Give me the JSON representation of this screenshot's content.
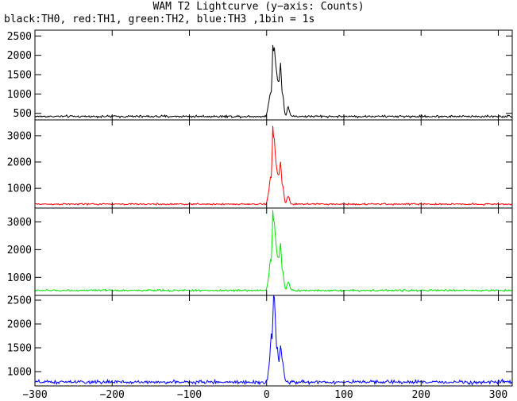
{
  "title": "WAM T2 Lightcurve (y−axis: Counts)",
  "subtitle": "black:TH0, red:TH1, green:TH2, blue:TH3 ,1bin = 1s",
  "chart_data": [
    {
      "type": "line",
      "series": [
        {
          "name": "TH0",
          "color": "#000000",
          "baseline": 420,
          "noise": 28,
          "peaks": [
            [
              2,
              220,
              1.2
            ],
            [
              5,
              580,
              1.5
            ],
            [
              8,
              1650,
              0.9
            ],
            [
              10,
              1350,
              0.9
            ],
            [
              12,
              1100,
              1.2
            ],
            [
              15,
              850,
              1.5
            ],
            [
              18,
              1200,
              1.1
            ],
            [
              21,
              520,
              1.4
            ],
            [
              28,
              250,
              1.6
            ]
          ]
        }
      ],
      "x": {
        "min": -300,
        "max": 318,
        "step": 1
      },
      "ylim": [
        330,
        2650
      ],
      "yticks": [
        500,
        1000,
        1500,
        2000,
        2500
      ],
      "grid": false
    },
    {
      "type": "line",
      "series": [
        {
          "name": "TH1",
          "color": "#ff0000",
          "baseline": 400,
          "noise": 30,
          "peaks": [
            [
              2,
              260,
              1.2
            ],
            [
              5,
              1000,
              1.4
            ],
            [
              8,
              2700,
              0.9
            ],
            [
              10,
              1900,
              0.9
            ],
            [
              12,
              1300,
              1.2
            ],
            [
              15,
              1050,
              1.5
            ],
            [
              18,
              1400,
              1.1
            ],
            [
              21,
              650,
              1.4
            ],
            [
              28,
              300,
              1.6
            ]
          ]
        }
      ],
      "x": {
        "min": -300,
        "max": 318,
        "step": 1
      },
      "ylim": [
        250,
        3600
      ],
      "yticks": [
        1000,
        2000,
        3000
      ],
      "grid": false
    },
    {
      "type": "line",
      "series": [
        {
          "name": "TH2",
          "color": "#00e000",
          "baseline": 530,
          "noise": 32,
          "peaks": [
            [
              2,
              280,
              1.2
            ],
            [
              5,
              1100,
              1.4
            ],
            [
              8,
              2600,
              0.9
            ],
            [
              10,
              1900,
              0.9
            ],
            [
              12,
              1400,
              1.2
            ],
            [
              15,
              1100,
              1.5
            ],
            [
              18,
              1500,
              1.1
            ],
            [
              21,
              650,
              1.4
            ],
            [
              28,
              300,
              1.6
            ]
          ]
        }
      ],
      "x": {
        "min": -300,
        "max": 318,
        "step": 1
      },
      "ylim": [
        350,
        3500
      ],
      "yticks": [
        1000,
        2000,
        3000
      ],
      "grid": false
    },
    {
      "type": "line",
      "series": [
        {
          "name": "TH3",
          "color": "#0000ff",
          "baseline": 780,
          "noise": 35,
          "peaks": [
            [
              3,
              250,
              1.2
            ],
            [
              6,
              1000,
              1.3
            ],
            [
              9,
              1800,
              0.9
            ],
            [
              11,
              1300,
              1.0
            ],
            [
              14,
              700,
              1.3
            ],
            [
              18,
              750,
              1.2
            ],
            [
              21,
              350,
              1.4
            ]
          ]
        }
      ],
      "x": {
        "min": -300,
        "max": 318,
        "step": 1
      },
      "ylim": [
        700,
        2600
      ],
      "yticks": [
        1000,
        1500,
        2000,
        2500
      ],
      "grid": false
    }
  ],
  "xticks": [
    -300,
    -200,
    -100,
    0,
    100,
    200,
    300
  ]
}
